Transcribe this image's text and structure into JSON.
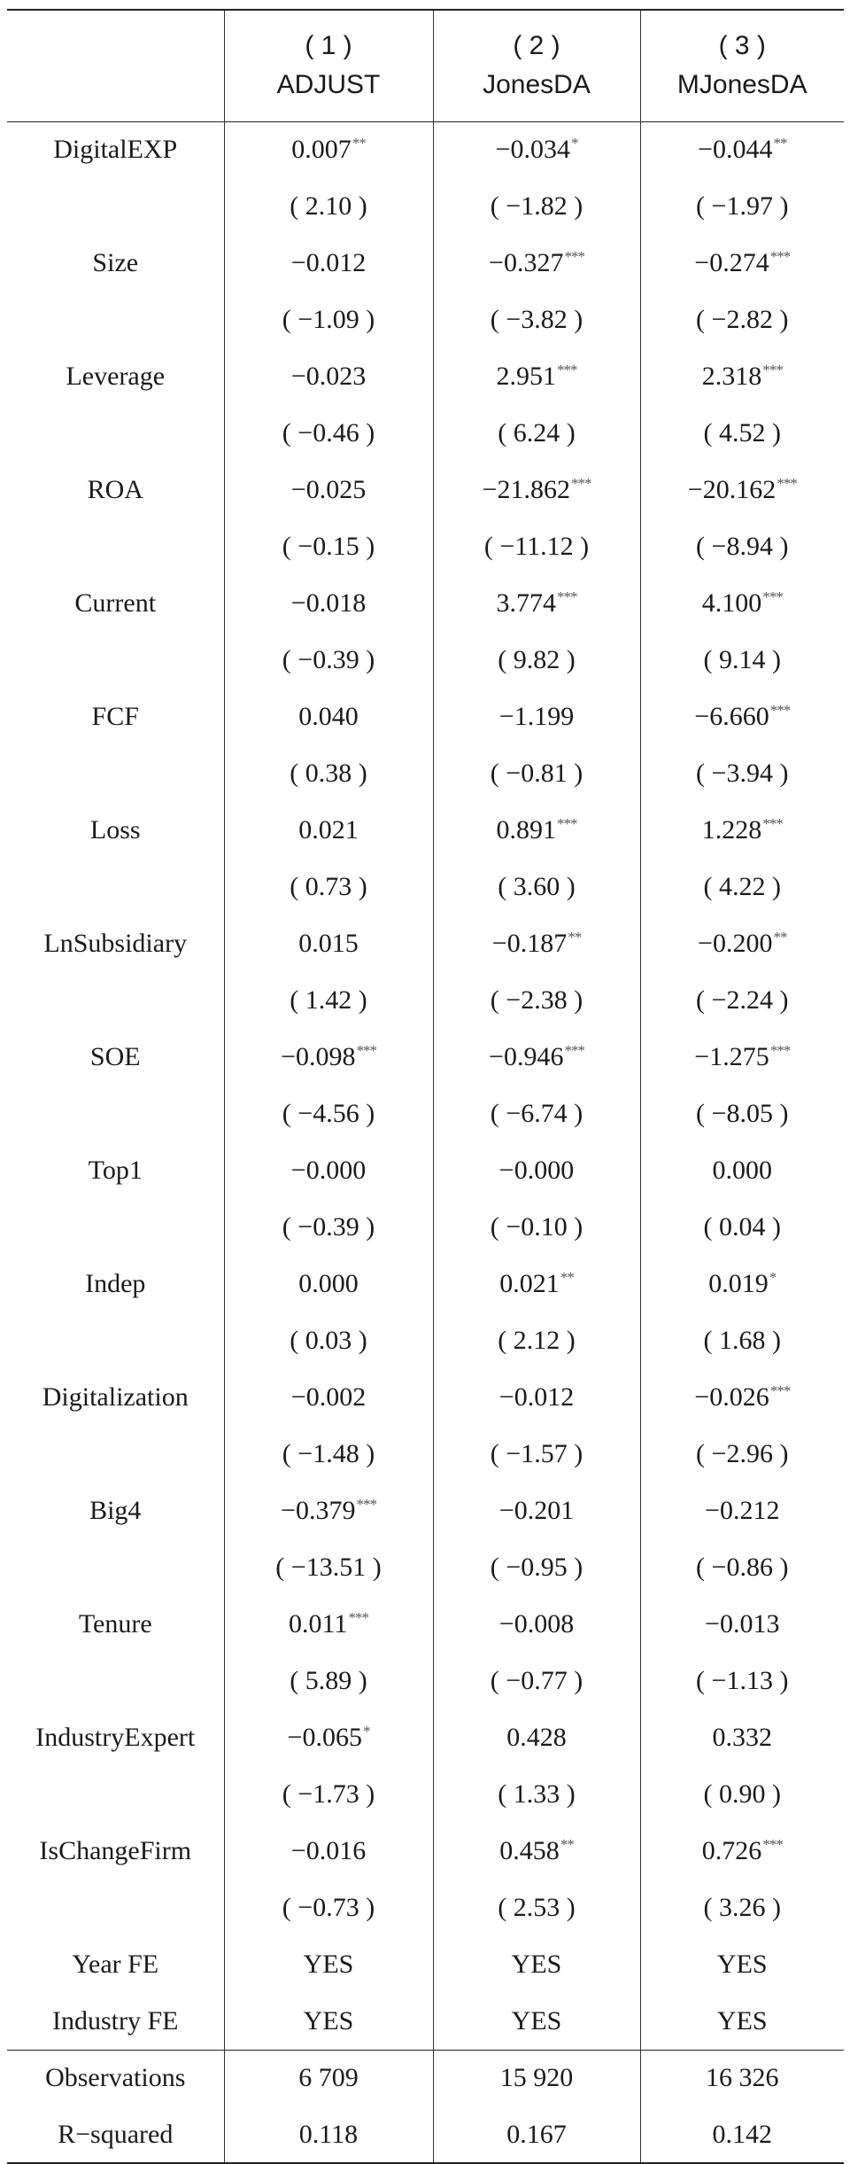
{
  "columns": [
    {
      "num": "( 1 )",
      "name": "ADJUST"
    },
    {
      "num": "( 2 )",
      "name": "JonesDA"
    },
    {
      "num": "( 3 )",
      "name": "MJonesDA"
    }
  ],
  "rows": [
    {
      "label": "DigitalEXP",
      "coef": [
        "0.007",
        "−0.034",
        "−0.044"
      ],
      "stars": [
        "**",
        "*",
        "**"
      ],
      "t": [
        "( 2.10 )",
        "( −1.82 )",
        "( −1.97 )"
      ]
    },
    {
      "label": "Size",
      "coef": [
        "−0.012",
        "−0.327",
        "−0.274"
      ],
      "stars": [
        "",
        "***",
        "***"
      ],
      "t": [
        "( −1.09 )",
        "( −3.82 )",
        "( −2.82 )"
      ]
    },
    {
      "label": "Leverage",
      "coef": [
        "−0.023",
        "2.951",
        "2.318"
      ],
      "stars": [
        "",
        "***",
        "***"
      ],
      "t": [
        "( −0.46 )",
        "( 6.24 )",
        "( 4.52 )"
      ]
    },
    {
      "label": "ROA",
      "coef": [
        "−0.025",
        "−21.862",
        "−20.162"
      ],
      "stars": [
        "",
        "***",
        "***"
      ],
      "t": [
        "( −0.15 )",
        "( −11.12 )",
        "( −8.94 )"
      ]
    },
    {
      "label": "Current",
      "coef": [
        "−0.018",
        "3.774",
        "4.100"
      ],
      "stars": [
        "",
        "***",
        "***"
      ],
      "t": [
        "( −0.39 )",
        "( 9.82 )",
        "( 9.14 )"
      ]
    },
    {
      "label": "FCF",
      "coef": [
        "0.040",
        "−1.199",
        "−6.660"
      ],
      "stars": [
        "",
        "",
        "***"
      ],
      "t": [
        "( 0.38 )",
        "( −0.81 )",
        "( −3.94 )"
      ]
    },
    {
      "label": "Loss",
      "coef": [
        "0.021",
        "0.891",
        "1.228"
      ],
      "stars": [
        "",
        "***",
        "***"
      ],
      "t": [
        "( 0.73 )",
        "( 3.60 )",
        "( 4.22 )"
      ]
    },
    {
      "label": "LnSubsidiary",
      "coef": [
        "0.015",
        "−0.187",
        "−0.200"
      ],
      "stars": [
        "",
        "**",
        "**"
      ],
      "t": [
        "( 1.42 )",
        "( −2.38 )",
        "( −2.24 )"
      ]
    },
    {
      "label": "SOE",
      "coef": [
        "−0.098",
        "−0.946",
        "−1.275"
      ],
      "stars": [
        "***",
        "***",
        "***"
      ],
      "t": [
        "( −4.56 )",
        "( −6.74 )",
        "( −8.05 )"
      ]
    },
    {
      "label": "Top1",
      "coef": [
        "−0.000",
        "−0.000",
        "0.000"
      ],
      "stars": [
        "",
        "",
        ""
      ],
      "t": [
        "( −0.39 )",
        "( −0.10 )",
        "( 0.04 )"
      ]
    },
    {
      "label": "Indep",
      "coef": [
        "0.000",
        "0.021",
        "0.019"
      ],
      "stars": [
        "",
        "**",
        "*"
      ],
      "t": [
        "( 0.03 )",
        "( 2.12 )",
        "( 1.68 )"
      ]
    },
    {
      "label": "Digitalization",
      "coef": [
        "−0.002",
        "−0.012",
        "−0.026"
      ],
      "stars": [
        "",
        "",
        "***"
      ],
      "t": [
        "( −1.48 )",
        "( −1.57 )",
        "( −2.96 )"
      ]
    },
    {
      "label": "Big4",
      "coef": [
        "−0.379",
        "−0.201",
        "−0.212"
      ],
      "stars": [
        "***",
        "",
        ""
      ],
      "t": [
        "( −13.51 )",
        "( −0.95 )",
        "( −0.86 )"
      ]
    },
    {
      "label": "Tenure",
      "coef": [
        "0.011",
        "−0.008",
        "−0.013"
      ],
      "stars": [
        "***",
        "",
        ""
      ],
      "t": [
        "( 5.89 )",
        "( −0.77 )",
        "( −1.13 )"
      ]
    },
    {
      "label": "IndustryExpert",
      "coef": [
        "−0.065",
        "0.428",
        "0.332"
      ],
      "stars": [
        "*",
        "",
        ""
      ],
      "t": [
        "( −1.73 )",
        "( 1.33 )",
        "( 0.90 )"
      ]
    },
    {
      "label": "IsChangeFirm",
      "coef": [
        "−0.016",
        "0.458",
        "0.726"
      ],
      "stars": [
        "",
        "**",
        "***"
      ],
      "t": [
        "( −0.73 )",
        "( 2.53 )",
        "( 3.26 )"
      ]
    }
  ],
  "fe_rows": [
    {
      "label": "Year FE",
      "values": [
        "YES",
        "YES",
        "YES"
      ]
    },
    {
      "label": "Industry FE",
      "values": [
        "YES",
        "YES",
        "YES"
      ]
    }
  ],
  "footer_rows": [
    {
      "label": "Observations",
      "values": [
        "6 709",
        "15 920",
        "16 326"
      ]
    },
    {
      "label": "R−squared",
      "values": [
        "0.118",
        "0.167",
        "0.142"
      ]
    }
  ]
}
